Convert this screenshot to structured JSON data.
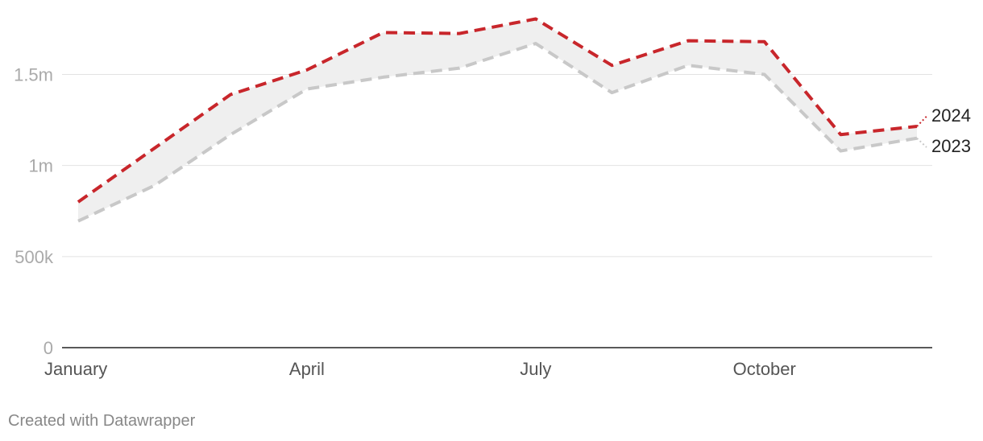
{
  "chart_data": {
    "type": "line",
    "x": [
      "January",
      "February",
      "March",
      "April",
      "May",
      "June",
      "July",
      "August",
      "September",
      "October",
      "November",
      "December"
    ],
    "series": [
      {
        "name": "2024",
        "color": "#c8262b",
        "values": [
          800000,
          1095000,
          1390000,
          1525000,
          1730000,
          1725000,
          1805000,
          1550000,
          1685000,
          1680000,
          1170000,
          1215000
        ],
        "end_label_value": 1270000
      },
      {
        "name": "2023",
        "color": "#c8c8c8",
        "values": [
          695000,
          890000,
          1170000,
          1420000,
          1485000,
          1535000,
          1670000,
          1400000,
          1550000,
          1500000,
          1080000,
          1150000
        ],
        "end_label_value": 1100000
      }
    ],
    "x_tick_labels": [
      "January",
      "April",
      "July",
      "October"
    ],
    "x_tick_positions": [
      0,
      3,
      6,
      9
    ],
    "y_ticks": [
      {
        "value": 0,
        "label": "0"
      },
      {
        "value": 500000,
        "label": "500k"
      },
      {
        "value": 1000000,
        "label": "1m"
      },
      {
        "value": 1500000,
        "label": "1.5m"
      }
    ],
    "ylim": [
      0,
      1900000
    ],
    "grid": true,
    "area_between_series": true,
    "area_color": "#efefef",
    "line_style": "dashed"
  },
  "credit": "Created with Datawrapper"
}
